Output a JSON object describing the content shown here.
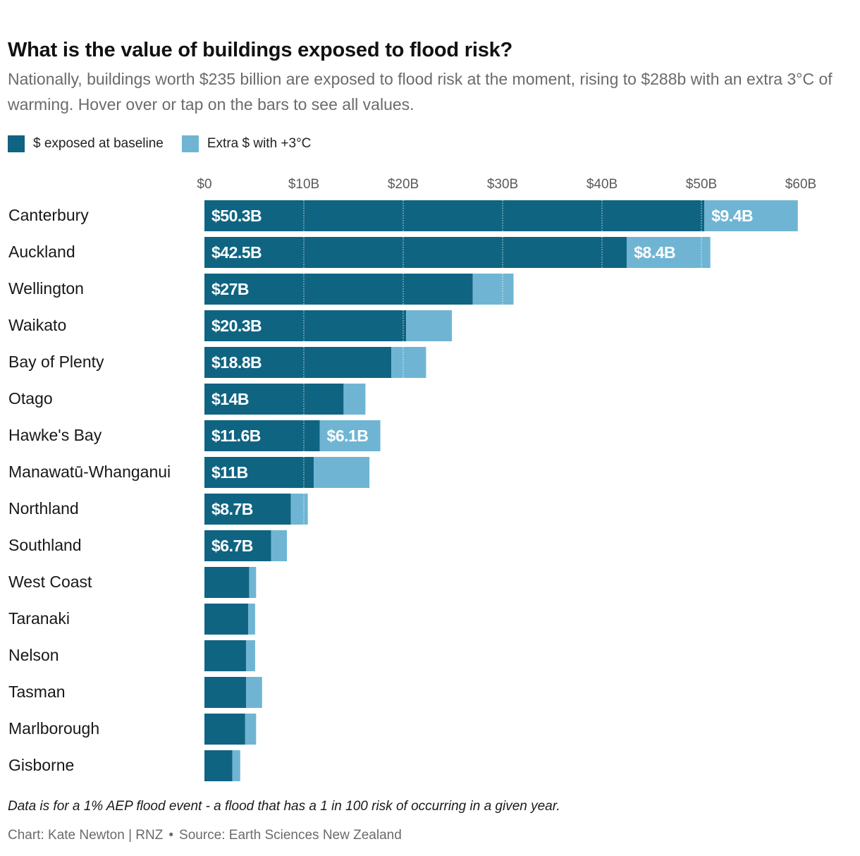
{
  "colors": {
    "baseline": "#0f6482",
    "extra": "#6fb5d3",
    "grid": "#ffffff",
    "axis_text": "#5a5a5a",
    "label_text": "#181818"
  },
  "chart_data": {
    "type": "bar",
    "orientation": "horizontal",
    "stacked": true,
    "title": "What is the value of buildings exposed to flood risk?",
    "subtitle": "Nationally, buildings worth $235 billion are exposed to flood risk at the moment, rising to $288b with an extra 3°C of warming. Hover over or tap on the bars to see all values.",
    "xlim": [
      0,
      60
    ],
    "ticks": [
      0,
      10,
      20,
      30,
      40,
      50,
      60
    ],
    "tick_labels": [
      "$0",
      "$10B",
      "$20B",
      "$30B",
      "$40B",
      "$50B",
      "$60B"
    ],
    "legend": [
      {
        "name": "$ exposed at baseline",
        "color": "#0f6482"
      },
      {
        "name": "Extra $ with +3°C",
        "color": "#6fb5d3"
      }
    ],
    "categories": [
      "Canterbury",
      "Auckland",
      "Wellington",
      "Waikato",
      "Bay of Plenty",
      "Otago",
      "Hawke's Bay",
      "Manawatū-Whanganui",
      "Northland",
      "Southland",
      "West Coast",
      "Taranaki",
      "Nelson",
      "Tasman",
      "Marlborough",
      "Gisborne"
    ],
    "series": [
      {
        "name": "$ exposed at baseline",
        "values": [
          50.3,
          42.5,
          27,
          20.3,
          18.8,
          14,
          11.6,
          11,
          8.7,
          6.7,
          4.5,
          4.4,
          4.2,
          4.2,
          4.1,
          2.8
        ],
        "labels": [
          "$50.3B",
          "$42.5B",
          "$27B",
          "$20.3B",
          "$18.8B",
          "$14B",
          "$11.6B",
          "$11B",
          "$8.7B",
          "$6.7B",
          "",
          "",
          "",
          "",
          "",
          ""
        ]
      },
      {
        "name": "Extra $ with +3°C",
        "values": [
          9.4,
          8.4,
          4.1,
          4.6,
          3.5,
          2.2,
          6.1,
          5.6,
          1.7,
          1.6,
          0.7,
          0.7,
          0.9,
          1.6,
          1.1,
          0.8
        ],
        "labels": [
          "$9.4B",
          "$8.4B",
          "",
          "",
          "",
          "",
          "$6.1B",
          "",
          "",
          "",
          "",
          "",
          "",
          "",
          "",
          ""
        ]
      }
    ]
  },
  "footer": {
    "note": "Data is for a 1% AEP flood event - a flood that has a 1 in 100 risk of occurring in a given year.",
    "chart_credit": "Chart: Kate Newton | RNZ",
    "separator": "•",
    "source": "Source: Earth Sciences New Zealand"
  }
}
